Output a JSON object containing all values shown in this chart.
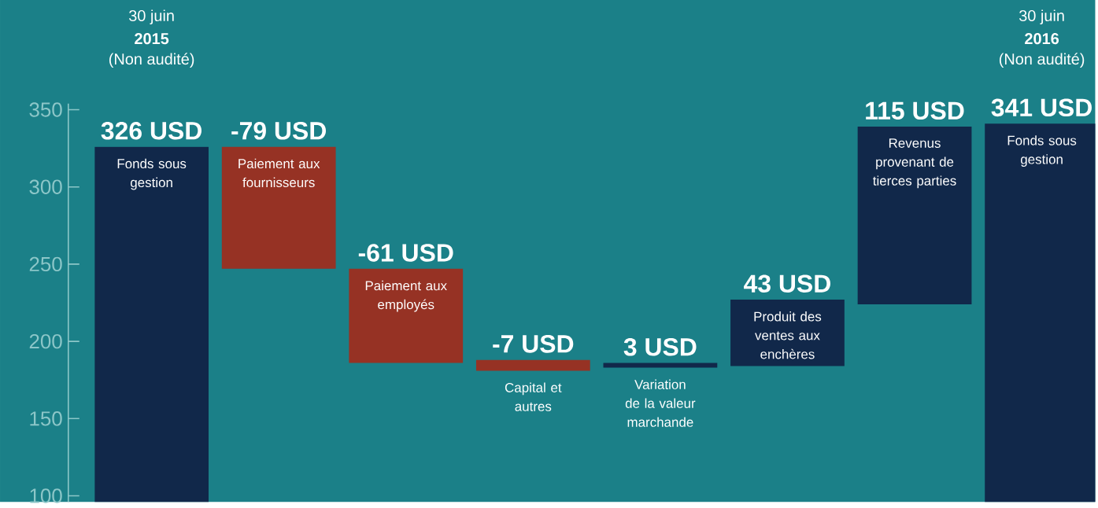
{
  "chart_data": {
    "type": "bar",
    "categories": [
      "Fonds sous gestion",
      "Paiement aux fournisseurs",
      "Paiement aux employés",
      "Capital et autres",
      "Variation de la valeur marchande",
      "Produit des ventes aux enchères",
      "Revenus provenant de tierces parties",
      "Fonds sous gestion"
    ],
    "values": [
      326,
      -79,
      -61,
      -7,
      3,
      43,
      115,
      341
    ],
    "base": [
      null,
      326,
      247,
      188,
      183,
      184,
      224,
      null
    ],
    "colors": [
      "#11284a",
      "#963224",
      "#963224",
      "#963224",
      "#11284a",
      "#11284a",
      "#11284a",
      "#11284a"
    ],
    "value_labels": [
      "326 USD",
      "-79 USD",
      "-61 USD",
      "-7 USD",
      "3 USD",
      "43 USD",
      "115 USD",
      "341 USD"
    ],
    "annotations": [
      "30 juin",
      "**2015**",
      "(Non audité)",
      "30 juin",
      "**2016**",
      "(Non audité)"
    ],
    "ylim": [
      96,
      354
    ],
    "yticks": [
      100,
      150,
      200,
      250,
      300,
      350
    ]
  }
}
